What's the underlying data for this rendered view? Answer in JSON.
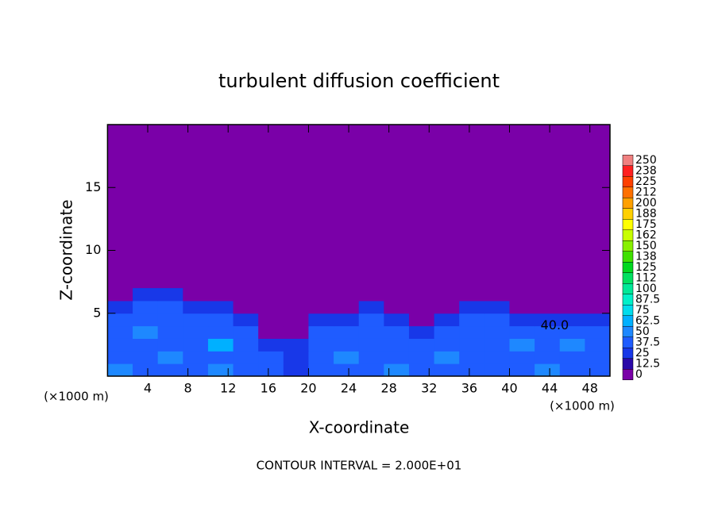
{
  "chart_data": {
    "type": "heatmap",
    "title": "turbulent diffusion coefficient",
    "x_label": "X-coordinate",
    "y_label": "Z-coordinate",
    "x_unit_label": "(×1000 m)",
    "y_unit_label": "(×1000 m)",
    "footnote": "CONTOUR INTERVAL = 2.000E+01",
    "contour_label": "40.0",
    "xlim": [
      0,
      50
    ],
    "ylim": [
      0,
      20
    ],
    "xticks": [
      4,
      8,
      12,
      16,
      20,
      24,
      28,
      32,
      36,
      40,
      44,
      48
    ],
    "yticks": [
      5,
      10,
      15
    ],
    "x_edges": [
      0,
      2.5,
      5,
      7.5,
      10,
      12.5,
      15,
      17.5,
      20,
      22.5,
      25,
      27.5,
      30,
      32.5,
      35,
      37.5,
      40,
      42.5,
      45,
      47.5,
      50
    ],
    "z_edges": [
      0,
      1,
      2,
      3,
      4,
      5,
      6,
      7
    ],
    "values": [
      [
        50,
        37.5,
        37.5,
        37.5,
        50,
        37.5,
        37.5,
        25,
        37.5,
        37.5,
        37.5,
        50,
        37.5,
        37.5,
        37.5,
        37.5,
        37.5,
        50,
        37.5,
        37.5
      ],
      [
        37.5,
        37.5,
        50,
        37.5,
        37.5,
        37.5,
        37.5,
        25,
        37.5,
        50,
        37.5,
        37.5,
        37.5,
        50,
        37.5,
        37.5,
        37.5,
        37.5,
        37.5,
        37.5
      ],
      [
        37.5,
        37.5,
        37.5,
        37.5,
        62.5,
        37.5,
        25,
        25,
        37.5,
        37.5,
        37.5,
        37.5,
        37.5,
        37.5,
        37.5,
        37.5,
        50,
        37.5,
        50,
        37.5
      ],
      [
        37.5,
        50,
        37.5,
        37.5,
        37.5,
        37.5,
        0,
        0,
        37.5,
        37.5,
        37.5,
        37.5,
        25,
        37.5,
        37.5,
        37.5,
        37.5,
        37.5,
        37.5,
        37.5
      ],
      [
        37.5,
        37.5,
        37.5,
        37.5,
        37.5,
        25,
        0,
        0,
        25,
        25,
        37.5,
        25,
        0,
        25,
        37.5,
        37.5,
        25,
        25,
        25,
        25
      ],
      [
        25,
        37.5,
        37.5,
        25,
        25,
        0,
        0,
        0,
        0,
        0,
        25,
        0,
        0,
        0,
        25,
        25,
        0,
        0,
        0,
        0
      ],
      [
        0,
        25,
        25,
        0,
        0,
        0,
        0,
        0,
        0,
        0,
        0,
        0,
        0,
        0,
        0,
        0,
        0,
        0,
        0,
        0
      ]
    ],
    "levels": [
      0,
      12.5,
      25,
      37.5,
      50,
      62.5,
      75,
      87.5,
      100,
      {
        "value": 112.5,
        "label": "112"
      },
      125,
      {
        "value": 137.5,
        "label": "138"
      },
      150,
      {
        "value": 162.5,
        "label": "162"
      },
      175,
      {
        "value": 187.5,
        "label": "188"
      },
      200,
      {
        "value": 212.5,
        "label": "212"
      },
      225,
      {
        "value": 237.5,
        "label": "238"
      },
      250
    ],
    "colors": [
      "#7a00a8",
      "#2a08a8",
      "#1838e8",
      "#1f5cff",
      "#1e88ff",
      "#00b0ff",
      "#00dcec",
      "#00f0c8",
      "#00e898",
      "#00e060",
      "#00d820",
      "#40e000",
      "#88f000",
      "#c8ff00",
      "#ffff00",
      "#ffd000",
      "#ffa000",
      "#ff7000",
      "#ff4000",
      "#ff2020",
      "#f08080"
    ]
  }
}
